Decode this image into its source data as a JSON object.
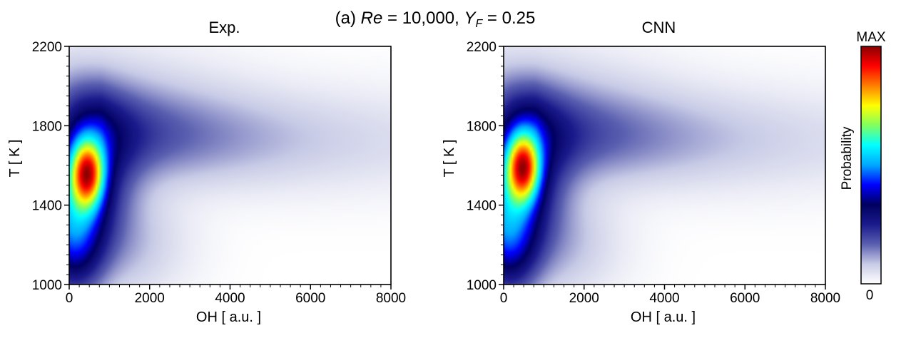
{
  "figure": {
    "title_parts": [
      {
        "text": "(a) ",
        "italic": false
      },
      {
        "text": "Re",
        "italic": true
      },
      {
        "text": " = 10,000,  ",
        "italic": false
      },
      {
        "text": "Y",
        "italic": true
      },
      {
        "text": "F",
        "italic": true,
        "sub": true
      },
      {
        "text": " = 0.25",
        "italic": false
      }
    ]
  },
  "chart_data": [
    {
      "type": "heatmap",
      "title": "Exp.",
      "xlabel": "OH [ a.u. ]",
      "ylabel": "T [ K ]",
      "xlim": [
        0,
        8000
      ],
      "ylim": [
        1000,
        2200
      ],
      "xticks": [
        0,
        2000,
        4000,
        6000,
        8000
      ],
      "yticks": [
        1000,
        1400,
        1800,
        2200
      ],
      "peak": {
        "x": 450,
        "y": 1560
      },
      "distribution": "joint PDF of T and OH, high-probability core near OH 300-600, T 1450-1650; ridge extends toward OH 8000 around T 1750"
    },
    {
      "type": "heatmap",
      "title": "CNN",
      "xlabel": "OH [ a.u. ]",
      "ylabel": "T [ K ]",
      "xlim": [
        0,
        8000
      ],
      "ylim": [
        1000,
        2200
      ],
      "xticks": [
        0,
        2000,
        4000,
        6000,
        8000
      ],
      "yticks": [
        1000,
        1400,
        1800,
        2200
      ],
      "peak": {
        "x": 480,
        "y": 1590
      },
      "distribution": "joint PDF of T and OH, high-probability core near OH 300-600, T 1500-1650; ridge extends toward OH 8000 around T 1750"
    }
  ],
  "colorbar": {
    "label": "Probability",
    "max_label": "MAX",
    "min_label": "0",
    "stops": [
      "#ffffff",
      "#c8cbe6",
      "#5a5fb0",
      "#1b1a8c",
      "#000060",
      "#0000ff",
      "#00a8ff",
      "#00ffff",
      "#80ff60",
      "#ffff00",
      "#ff8000",
      "#ff0000",
      "#8b0000"
    ]
  }
}
